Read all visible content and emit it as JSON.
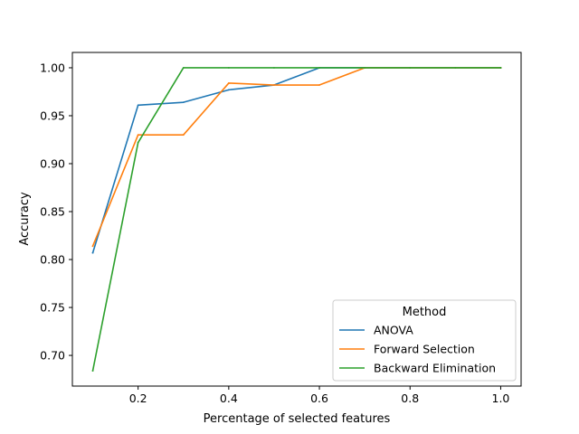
{
  "chart_data": {
    "type": "line",
    "title": "",
    "xlabel": "Percentage of selected features",
    "ylabel": "Accuracy",
    "xlim": [
      0.055,
      1.045
    ],
    "ylim": [
      0.668,
      1.016
    ],
    "x_ticks": [
      0.2,
      0.4,
      0.6,
      0.8,
      1.0
    ],
    "x_tick_labels": [
      "0.2",
      "0.4",
      "0.6",
      "0.8",
      "1.0"
    ],
    "y_ticks": [
      0.7,
      0.75,
      0.8,
      0.85,
      0.9,
      0.95,
      1.0
    ],
    "y_tick_labels": [
      "0.70",
      "0.75",
      "0.80",
      "0.85",
      "0.90",
      "0.95",
      "1.00"
    ],
    "grid": false,
    "legend": {
      "title": "Method",
      "position": "lower-right"
    },
    "x": [
      0.1,
      0.2,
      0.3,
      0.4,
      0.5,
      0.6,
      0.7,
      0.8,
      0.9,
      1.0
    ],
    "series": [
      {
        "name": "ANOVA",
        "color": "#1f77b4",
        "values": [
          0.807,
          0.961,
          0.964,
          0.977,
          0.982,
          1.0,
          1.0,
          1.0,
          1.0,
          1.0
        ]
      },
      {
        "name": "Forward Selection",
        "color": "#ff7f0e",
        "values": [
          0.814,
          0.93,
          0.93,
          0.984,
          0.982,
          0.982,
          1.0,
          1.0,
          1.0,
          1.0
        ]
      },
      {
        "name": "Backward Elimination",
        "color": "#2ca02c",
        "values": [
          0.684,
          0.922,
          1.0,
          1.0,
          1.0,
          1.0,
          1.0,
          1.0,
          1.0,
          1.0
        ]
      }
    ]
  }
}
